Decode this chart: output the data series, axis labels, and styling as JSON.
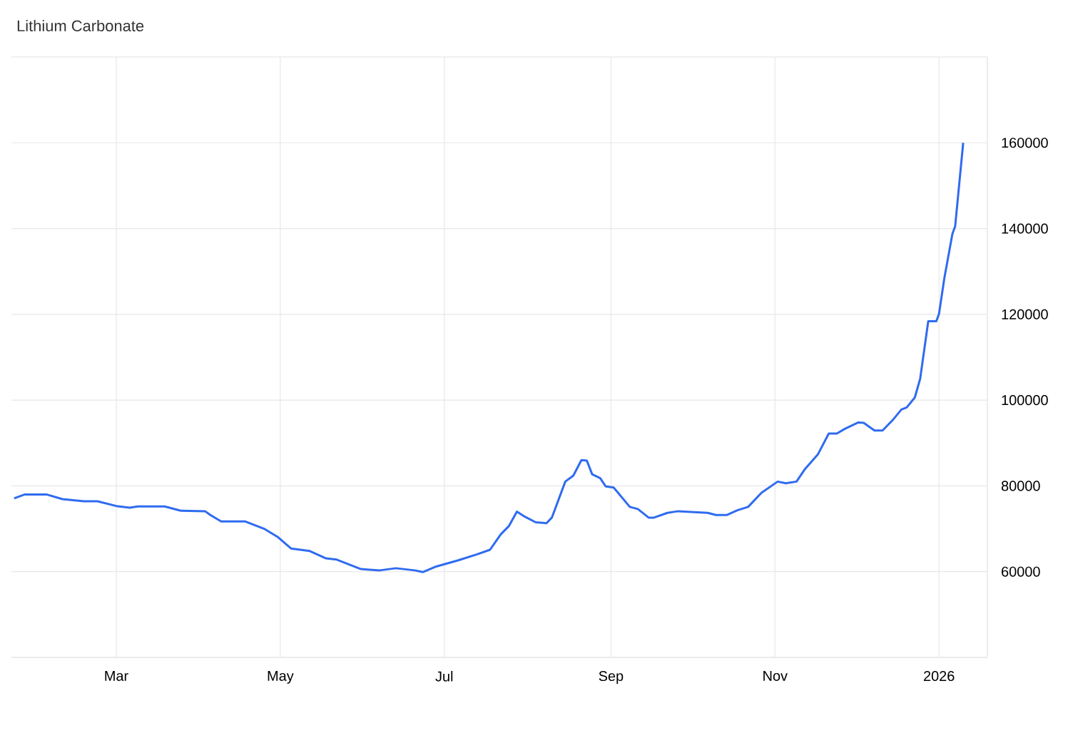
{
  "chart_data": {
    "type": "line",
    "title": "Lithium Carbonate",
    "color": "#2f6bf0",
    "grid": true,
    "xlim": [
      "2025-01-21",
      "2026-01-19"
    ],
    "xticks": [
      {
        "value": "2025-03-01",
        "label": "Mar"
      },
      {
        "value": "2025-05-01",
        "label": "May"
      },
      {
        "value": "2025-07-01",
        "label": "Jul"
      },
      {
        "value": "2025-09-01",
        "label": "Sep"
      },
      {
        "value": "2025-11-01",
        "label": "Nov"
      },
      {
        "value": "2026-01-01",
        "label": "2026"
      }
    ],
    "ylim": [
      40000,
      180000
    ],
    "yticks": [
      {
        "value": 40000,
        "label": null
      },
      60000,
      80000,
      100000,
      120000,
      140000,
      160000,
      {
        "value": 180000,
        "label": null
      }
    ],
    "x": [
      "2025-01-22",
      "2025-01-26",
      "2025-02-03",
      "2025-02-09",
      "2025-02-17",
      "2025-02-22",
      "2025-03-01",
      "2025-03-06",
      "2025-03-09",
      "2025-03-19",
      "2025-03-25",
      "2025-04-03",
      "2025-04-05",
      "2025-04-09",
      "2025-04-18",
      "2025-04-25",
      "2025-04-30",
      "2025-05-05",
      "2025-05-12",
      "2025-05-18",
      "2025-05-22",
      "2025-05-31",
      "2025-06-07",
      "2025-06-13",
      "2025-06-20",
      "2025-06-23",
      "2025-06-28",
      "2025-07-06",
      "2025-07-13",
      "2025-07-18",
      "2025-07-22",
      "2025-07-25",
      "2025-07-28",
      "2025-07-31",
      "2025-08-04",
      "2025-08-08",
      "2025-08-10",
      "2025-08-15",
      "2025-08-18",
      "2025-08-21",
      "2025-08-23",
      "2025-08-25",
      "2025-08-28",
      "2025-08-30",
      "2025-09-02",
      "2025-09-08",
      "2025-09-11",
      "2025-09-15",
      "2025-09-17",
      "2025-09-22",
      "2025-09-26",
      "2025-10-07",
      "2025-10-10",
      "2025-10-14",
      "2025-10-18",
      "2025-10-22",
      "2025-10-27",
      "2025-11-02",
      "2025-11-05",
      "2025-11-09",
      "2025-11-12",
      "2025-11-17",
      "2025-11-21",
      "2025-11-24",
      "2025-11-27",
      "2025-12-02",
      "2025-12-04",
      "2025-12-08",
      "2025-12-11",
      "2025-12-15",
      "2025-12-18",
      "2025-12-20",
      "2025-12-23",
      "2025-12-25",
      "2025-12-28",
      "2025-12-31",
      "2026-01-01",
      "2026-01-03",
      "2026-01-06",
      "2026-01-07",
      "2026-01-10"
    ],
    "values": [
      77100,
      78000,
      78000,
      76900,
      76400,
      76400,
      75300,
      74900,
      75200,
      75200,
      74200,
      74100,
      73200,
      71700,
      71700,
      70000,
      68100,
      65400,
      64800,
      63100,
      62800,
      60600,
      60300,
      60800,
      60300,
      59900,
      61200,
      62600,
      64000,
      65100,
      68700,
      70600,
      74000,
      72800,
      71500,
      71300,
      72600,
      81000,
      82400,
      86000,
      85900,
      82700,
      81800,
      79900,
      79600,
      75100,
      74600,
      72600,
      72600,
      73700,
      74100,
      73700,
      73200,
      73200,
      74300,
      75100,
      78400,
      81000,
      80600,
      81000,
      83800,
      87400,
      92200,
      92200,
      93300,
      94800,
      94700,
      92900,
      92900,
      95500,
      97800,
      98300,
      100600,
      105000,
      118400,
      118400,
      120100,
      128500,
      138800,
      140500,
      160000
    ]
  }
}
